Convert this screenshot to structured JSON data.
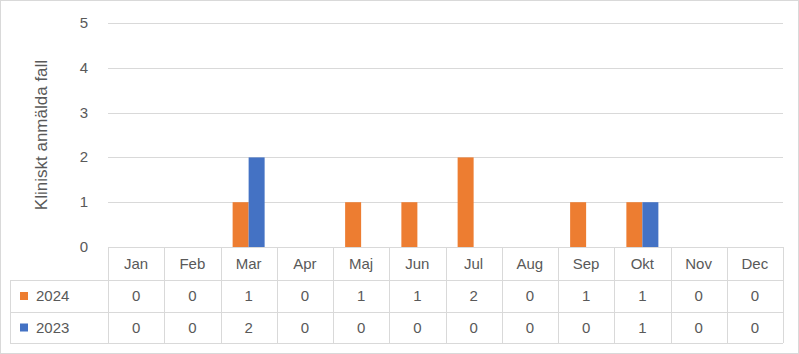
{
  "chart_data": {
    "type": "bar",
    "ylabel": "Kliniskt anmälda fall",
    "categories": [
      "Jan",
      "Feb",
      "Mar",
      "Apr",
      "Maj",
      "Jun",
      "Jul",
      "Aug",
      "Sep",
      "Okt",
      "Nov",
      "Dec"
    ],
    "series": [
      {
        "name": "2024",
        "color": "#ED7D31",
        "values": [
          0,
          0,
          1,
          0,
          1,
          1,
          2,
          0,
          1,
          1,
          0,
          0
        ]
      },
      {
        "name": "2023",
        "color": "#4472C4",
        "values": [
          0,
          0,
          2,
          0,
          0,
          0,
          0,
          0,
          0,
          1,
          0,
          0
        ]
      }
    ],
    "ylim": [
      0,
      5
    ],
    "yticks": [
      0,
      1,
      2,
      3,
      4,
      5
    ],
    "grid": true
  }
}
